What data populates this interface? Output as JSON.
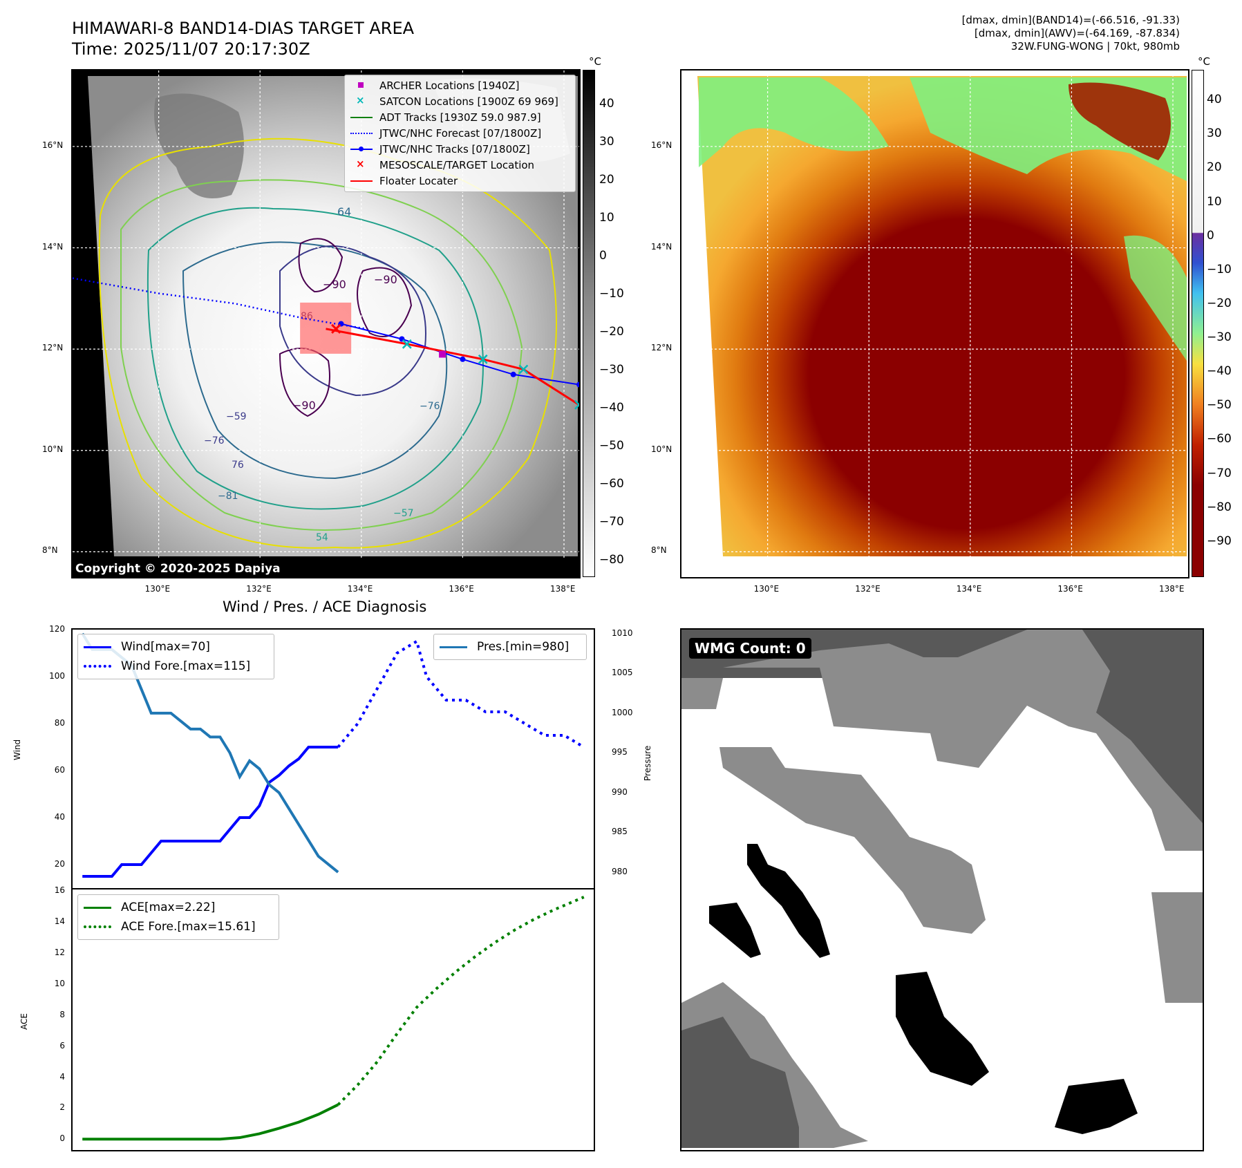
{
  "header": {
    "title_line1": "HIMAWARI-8 BAND14-DIAS TARGET AREA",
    "title_line2": "Time: 2025/11/07 20:17:30Z",
    "stats_line1": "[dmax, dmin](BAND14)=(-66.516, -91.33)",
    "stats_line2": "[dmax, dmin](AWV)=(-64.169, -87.834)",
    "stats_line3": "32W.FUNG-WONG | 70kt, 980mb"
  },
  "map_axes": {
    "lat_labels": [
      "16°N",
      "14°N",
      "12°N",
      "10°N",
      "8°N"
    ],
    "lon_labels": [
      "130°E",
      "132°E",
      "134°E",
      "136°E",
      "138°E"
    ],
    "lat_values": [
      16,
      14,
      12,
      10,
      8
    ],
    "lon_values": [
      130,
      132,
      134,
      136,
      138
    ],
    "lon_range": [
      128.3,
      138.3
    ],
    "lat_range": [
      7.5,
      17.5
    ]
  },
  "ir_panel": {
    "colorbar_unit": "°C",
    "colorbar_ticks": [
      "40",
      "30",
      "20",
      "10",
      "0",
      "−10",
      "−20",
      "−30",
      "−40",
      "−50",
      "−60",
      "−70",
      "−80"
    ],
    "colorbar_values": [
      40,
      30,
      20,
      10,
      0,
      -10,
      -20,
      -30,
      -40,
      -50,
      -60,
      -70,
      -80
    ],
    "colorbar_range": [
      -84,
      49
    ],
    "contour_labels": [
      "64",
      "−90",
      "−90",
      "−90",
      "76",
      "−81",
      "−76",
      "54",
      "−57",
      "−59",
      "−76",
      "86"
    ],
    "copyright": "Copyright © 2020-2025 Dapiya",
    "legend": [
      {
        "label": "ARCHER Locations [1940Z]",
        "color": "#c000c0",
        "marker": "square"
      },
      {
        "label": "SATCON Locations [1900Z 69 969]",
        "color": "#00b8b8",
        "marker": "x"
      },
      {
        "label": "ADT Tracks [1930Z 59.0 987.9]",
        "color": "#108010",
        "marker": "line"
      },
      {
        "label": "JTWC/NHC Forecast [07/1800Z]",
        "color": "#0000ff",
        "marker": "dotted"
      },
      {
        "label": "JTWC/NHC Tracks [07/1800Z]",
        "color": "#0000ff",
        "marker": "line-dot"
      },
      {
        "label": "MESOSCALE/TARGET Location",
        "color": "#ff0000",
        "marker": "x"
      },
      {
        "label": "Floater Locater",
        "color": "#ff0000",
        "marker": "line"
      }
    ],
    "jtwc_forecast_track": [
      [
        128.3,
        13.4
      ],
      [
        130.0,
        13.1
      ],
      [
        131.5,
        12.9
      ],
      [
        132.9,
        12.6
      ],
      [
        134.1,
        12.4
      ]
    ],
    "jtwc_track": [
      [
        133.6,
        12.5
      ],
      [
        134.8,
        12.2
      ],
      [
        136.0,
        11.8
      ],
      [
        137.0,
        11.5
      ],
      [
        138.3,
        11.3
      ]
    ],
    "floater_track": [
      [
        133.3,
        12.4
      ],
      [
        134.9,
        12.1
      ],
      [
        136.4,
        11.8
      ],
      [
        137.2,
        11.6
      ],
      [
        138.3,
        10.9
      ]
    ],
    "target": [
      133.5,
      12.4
    ],
    "archer": [
      135.6,
      11.9
    ]
  },
  "awv_panel": {
    "colorbar_unit": "°C",
    "colorbar_ticks": [
      "40",
      "30",
      "20",
      "10",
      "0",
      "−10",
      "−20",
      "−30",
      "−40",
      "−50",
      "−60",
      "−70",
      "−80",
      "−90"
    ],
    "colorbar_values": [
      40,
      30,
      20,
      10,
      0,
      -10,
      -20,
      -30,
      -40,
      -50,
      -60,
      -70,
      -80,
      -90
    ],
    "colorbar_range": [
      -100,
      49
    ]
  },
  "chart_data": [
    {
      "type": "line",
      "title": "Wind / Pres. / ACE Diagnosis",
      "ylabel": "Wind",
      "ylabel_right": "Pressure",
      "ylim": [
        10,
        120
      ],
      "ylim_right": [
        978,
        1010.5
      ],
      "yticks": [
        20,
        40,
        60,
        80,
        100,
        120
      ],
      "yticks_right": [
        980,
        985,
        990,
        995,
        1000,
        1005,
        1010
      ],
      "xlim": [
        -1,
        52
      ],
      "series": [
        {
          "name": "Wind[max=70]",
          "color": "#0000ff",
          "style": "solid",
          "x": [
            0,
            1,
            2,
            3,
            4,
            5,
            6,
            7,
            8,
            9,
            10,
            11,
            12,
            13,
            14,
            15,
            16,
            17,
            18,
            19,
            20,
            21,
            22,
            23,
            24,
            25,
            26
          ],
          "values": [
            15,
            15,
            15,
            15,
            20,
            20,
            20,
            25,
            30,
            30,
            30,
            30,
            30,
            30,
            30,
            35,
            40,
            40,
            45,
            55,
            58,
            62,
            65,
            70,
            70,
            70,
            70
          ]
        },
        {
          "name": "Wind Fore.[max=115]",
          "color": "#0000ff",
          "style": "dotted",
          "x": [
            26,
            28,
            30,
            32,
            34,
            35,
            37,
            39,
            41,
            43,
            45,
            47,
            49,
            51
          ],
          "values": [
            70,
            80,
            95,
            110,
            115,
            100,
            90,
            90,
            85,
            85,
            80,
            75,
            75,
            70
          ]
        },
        {
          "name": "Pres.[min=980]",
          "color": "#1f77b4",
          "style": "solid",
          "axis": "right",
          "x": [
            0,
            1,
            2,
            3,
            4,
            5,
            6,
            7,
            8,
            9,
            10,
            11,
            12,
            13,
            14,
            15,
            16,
            17,
            18,
            19,
            20,
            21,
            22,
            23,
            24,
            25,
            26
          ],
          "values": [
            1010,
            1008,
            1008,
            1008,
            1007,
            1006,
            1003,
            1000,
            1000,
            1000,
            999,
            998,
            998,
            997,
            997,
            995,
            992,
            994,
            993,
            991,
            990,
            988,
            986,
            984,
            982,
            981,
            980
          ]
        }
      ]
    },
    {
      "type": "line",
      "ylabel": "ACE",
      "ylim": [
        -0.7,
        16.1
      ],
      "yticks": [
        0,
        2,
        4,
        6,
        8,
        10,
        12,
        14,
        16
      ],
      "xlim": [
        -1,
        52
      ],
      "series": [
        {
          "name": "ACE[max=2.22]",
          "color": "#008000",
          "style": "solid",
          "x": [
            0,
            4,
            8,
            12,
            14,
            16,
            18,
            20,
            22,
            24,
            26
          ],
          "values": [
            0,
            0,
            0,
            0,
            0,
            0.1,
            0.35,
            0.7,
            1.1,
            1.6,
            2.22
          ]
        },
        {
          "name": "ACE Fore.[max=15.61]",
          "color": "#008000",
          "style": "dotted",
          "x": [
            26,
            28,
            30,
            32,
            34,
            36,
            38,
            40,
            42,
            44,
            46,
            48,
            51
          ],
          "values": [
            2.22,
            3.5,
            5.0,
            6.8,
            8.5,
            9.7,
            10.8,
            11.8,
            12.7,
            13.5,
            14.2,
            14.8,
            15.61
          ]
        }
      ]
    },
    {
      "type": "heatmap",
      "title": "WMG Count: 0"
    }
  ]
}
